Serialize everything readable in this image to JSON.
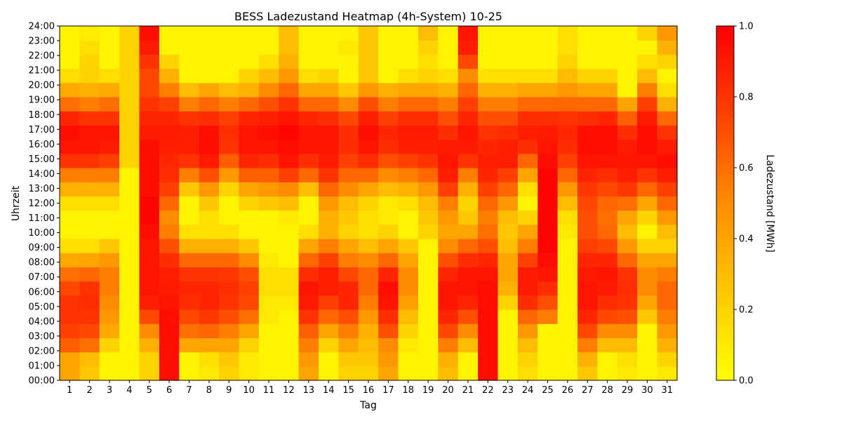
{
  "chart_data": {
    "type": "heatmap",
    "title": "BESS Ladezustand Heatmap (4h-System) 10-25",
    "xlabel": "Tag",
    "ylabel": "Uhrzeit",
    "colorbar_label": "Ladezustand [MWh]",
    "colorscale": [
      "#ffff00",
      "#ffc800",
      "#ff8c00",
      "#ff4000",
      "#ff0000"
    ],
    "vmin": 0.0,
    "vmax": 1.0,
    "colorbar_ticks": [
      "0.0",
      "0.2",
      "0.4",
      "0.6",
      "0.8",
      "1.0"
    ],
    "x_ticks": [
      "1",
      "2",
      "3",
      "4",
      "5",
      "6",
      "7",
      "8",
      "9",
      "10",
      "11",
      "12",
      "13",
      "14",
      "15",
      "16",
      "17",
      "18",
      "19",
      "20",
      "21",
      "22",
      "23",
      "24",
      "25",
      "26",
      "27",
      "28",
      "29",
      "30",
      "31"
    ],
    "y_ticks": [
      "00:00",
      "01:00",
      "02:00",
      "03:00",
      "04:00",
      "05:00",
      "06:00",
      "07:00",
      "08:00",
      "09:00",
      "10:00",
      "11:00",
      "12:00",
      "13:00",
      "14:00",
      "15:00",
      "16:00",
      "17:00",
      "18:00",
      "19:00",
      "20:00",
      "21:00",
      "22:00",
      "23:00",
      "24:00"
    ],
    "hours": [
      0,
      1,
      2,
      3,
      4,
      5,
      6,
      7,
      8,
      9,
      10,
      11,
      12,
      13,
      14,
      15,
      16,
      17,
      18,
      19,
      20,
      21,
      22,
      23,
      24
    ],
    "days": [
      {
        "day": 1,
        "values": [
          0.4,
          0.4,
          0.65,
          0.75,
          0.8,
          0.8,
          0.72,
          0.6,
          0.38,
          0.15,
          0.05,
          0.05,
          0.15,
          0.35,
          0.55,
          0.8,
          0.92,
          0.95,
          0.85,
          0.6,
          0.38,
          0.15,
          0.05,
          0.05,
          0.05
        ]
      },
      {
        "day": 2,
        "values": [
          0.25,
          0.3,
          0.6,
          0.72,
          0.8,
          0.82,
          0.8,
          0.62,
          0.4,
          0.15,
          0.05,
          0.05,
          0.15,
          0.35,
          0.55,
          0.8,
          0.92,
          0.92,
          0.8,
          0.55,
          0.35,
          0.2,
          0.2,
          0.15,
          0.08
        ]
      },
      {
        "day": 3,
        "values": [
          0.05,
          0.05,
          0.2,
          0.38,
          0.45,
          0.5,
          0.55,
          0.55,
          0.45,
          0.25,
          0.05,
          0.05,
          0.15,
          0.35,
          0.55,
          0.75,
          0.9,
          0.92,
          0.8,
          0.6,
          0.38,
          0.15,
          0.05,
          0.05,
          0.05
        ]
      },
      {
        "day": 4,
        "values": [
          0.05,
          0.05,
          0.05,
          0.05,
          0.05,
          0.05,
          0.05,
          0.05,
          0.05,
          0.05,
          0.05,
          0.05,
          0.05,
          0.05,
          0.05,
          0.2,
          0.2,
          0.2,
          0.2,
          0.2,
          0.2,
          0.2,
          0.2,
          0.2,
          0.2
        ]
      },
      {
        "day": 5,
        "values": [
          0.2,
          0.2,
          0.35,
          0.5,
          0.72,
          0.88,
          0.92,
          0.92,
          0.92,
          0.92,
          0.95,
          0.98,
          0.98,
          0.95,
          0.95,
          0.95,
          0.95,
          0.9,
          0.85,
          0.8,
          0.72,
          0.72,
          0.8,
          0.9,
          0.95
        ]
      },
      {
        "day": 6,
        "values": [
          0.95,
          0.95,
          0.95,
          0.95,
          0.95,
          0.92,
          0.9,
          0.88,
          0.82,
          0.7,
          0.55,
          0.5,
          0.62,
          0.75,
          0.82,
          0.85,
          0.88,
          0.9,
          0.85,
          0.75,
          0.55,
          0.35,
          0.2,
          0.05,
          0.05
        ]
      },
      {
        "day": 7,
        "values": [
          0.05,
          0.05,
          0.4,
          0.6,
          0.72,
          0.82,
          0.85,
          0.8,
          0.62,
          0.35,
          0.15,
          0.05,
          0.05,
          0.25,
          0.55,
          0.8,
          0.88,
          0.88,
          0.8,
          0.55,
          0.3,
          0.05,
          0.05,
          0.05,
          0.05
        ]
      },
      {
        "day": 8,
        "values": [
          0.1,
          0.15,
          0.4,
          0.62,
          0.78,
          0.85,
          0.85,
          0.8,
          0.62,
          0.35,
          0.15,
          0.15,
          0.25,
          0.45,
          0.7,
          0.9,
          0.95,
          0.95,
          0.82,
          0.62,
          0.4,
          0.05,
          0.05,
          0.05,
          0.05
        ]
      },
      {
        "day": 9,
        "values": [
          0.2,
          0.25,
          0.4,
          0.55,
          0.7,
          0.8,
          0.82,
          0.78,
          0.62,
          0.35,
          0.15,
          0.05,
          0.05,
          0.2,
          0.45,
          0.65,
          0.8,
          0.82,
          0.75,
          0.55,
          0.3,
          0.05,
          0.05,
          0.05,
          0.05
        ]
      },
      {
        "day": 10,
        "values": [
          0.1,
          0.1,
          0.2,
          0.4,
          0.6,
          0.72,
          0.75,
          0.7,
          0.5,
          0.25,
          0.05,
          0.05,
          0.2,
          0.4,
          0.65,
          0.85,
          0.92,
          0.92,
          0.85,
          0.62,
          0.35,
          0.2,
          0.05,
          0.05,
          0.05
        ]
      },
      {
        "day": 11,
        "values": [
          0.05,
          0.05,
          0.05,
          0.05,
          0.1,
          0.1,
          0.15,
          0.15,
          0.1,
          0.05,
          0.05,
          0.05,
          0.25,
          0.45,
          0.65,
          0.82,
          0.92,
          0.95,
          0.88,
          0.7,
          0.5,
          0.3,
          0.15,
          0.05,
          0.05
        ]
      },
      {
        "day": 12,
        "values": [
          0.05,
          0.05,
          0.05,
          0.05,
          0.05,
          0.1,
          0.15,
          0.15,
          0.05,
          0.05,
          0.05,
          0.1,
          0.3,
          0.5,
          0.75,
          0.92,
          0.95,
          0.98,
          0.92,
          0.8,
          0.62,
          0.45,
          0.35,
          0.3,
          0.3
        ]
      },
      {
        "day": 13,
        "values": [
          0.4,
          0.45,
          0.55,
          0.65,
          0.8,
          0.9,
          0.92,
          0.82,
          0.62,
          0.4,
          0.15,
          0.05,
          0.05,
          0.3,
          0.62,
          0.82,
          0.92,
          0.92,
          0.85,
          0.62,
          0.4,
          0.15,
          0.05,
          0.05,
          0.05
        ]
      },
      {
        "day": 14,
        "values": [
          0.05,
          0.05,
          0.2,
          0.4,
          0.62,
          0.75,
          0.88,
          0.88,
          0.75,
          0.55,
          0.35,
          0.35,
          0.45,
          0.62,
          0.8,
          0.9,
          0.92,
          0.92,
          0.82,
          0.62,
          0.4,
          0.2,
          0.05,
          0.05,
          0.05
        ]
      },
      {
        "day": 15,
        "values": [
          0.2,
          0.25,
          0.4,
          0.55,
          0.7,
          0.85,
          0.85,
          0.72,
          0.55,
          0.4,
          0.2,
          0.25,
          0.3,
          0.5,
          0.62,
          0.75,
          0.82,
          0.82,
          0.72,
          0.5,
          0.25,
          0.05,
          0.05,
          0.1,
          0.05
        ]
      },
      {
        "day": 16,
        "values": [
          0.2,
          0.25,
          0.3,
          0.35,
          0.45,
          0.55,
          0.62,
          0.62,
          0.5,
          0.3,
          0.15,
          0.15,
          0.2,
          0.4,
          0.62,
          0.82,
          0.92,
          0.95,
          0.88,
          0.7,
          0.45,
          0.25,
          0.25,
          0.25,
          0.25
        ]
      },
      {
        "day": 17,
        "values": [
          0.4,
          0.45,
          0.5,
          0.7,
          0.82,
          0.92,
          0.95,
          0.85,
          0.62,
          0.4,
          0.2,
          0.1,
          0.1,
          0.3,
          0.5,
          0.7,
          0.82,
          0.85,
          0.75,
          0.55,
          0.35,
          0.05,
          0.05,
          0.05,
          0.05
        ]
      },
      {
        "day": 18,
        "values": [
          0.05,
          0.05,
          0.1,
          0.2,
          0.3,
          0.42,
          0.5,
          0.5,
          0.4,
          0.25,
          0.05,
          0.05,
          0.15,
          0.35,
          0.55,
          0.75,
          0.88,
          0.9,
          0.82,
          0.62,
          0.4,
          0.15,
          0.05,
          0.05,
          0.05
        ]
      },
      {
        "day": 19,
        "values": [
          0.05,
          0.05,
          0.05,
          0.05,
          0.05,
          0.05,
          0.05,
          0.05,
          0.05,
          0.05,
          0.2,
          0.25,
          0.3,
          0.45,
          0.62,
          0.8,
          0.88,
          0.9,
          0.82,
          0.62,
          0.4,
          0.2,
          0.15,
          0.2,
          0.3
        ]
      },
      {
        "day": 20,
        "values": [
          0.3,
          0.35,
          0.55,
          0.72,
          0.85,
          0.92,
          0.92,
          0.85,
          0.7,
          0.5,
          0.4,
          0.45,
          0.55,
          0.75,
          0.88,
          0.92,
          0.9,
          0.82,
          0.7,
          0.55,
          0.35,
          0.15,
          0.05,
          0.05,
          0.05
        ]
      },
      {
        "day": 21,
        "values": [
          0.05,
          0.05,
          0.3,
          0.5,
          0.7,
          0.85,
          0.92,
          0.92,
          0.82,
          0.62,
          0.4,
          0.25,
          0.2,
          0.35,
          0.55,
          0.8,
          0.9,
          0.92,
          0.85,
          0.75,
          0.62,
          0.5,
          0.72,
          0.88,
          0.92
        ]
      },
      {
        "day": 22,
        "values": [
          0.95,
          0.95,
          0.95,
          0.95,
          0.95,
          0.95,
          0.95,
          0.92,
          0.85,
          0.7,
          0.6,
          0.55,
          0.62,
          0.75,
          0.85,
          0.88,
          0.85,
          0.8,
          0.7,
          0.55,
          0.35,
          0.15,
          0.05,
          0.05,
          0.05
        ]
      },
      {
        "day": 23,
        "values": [
          0.05,
          0.05,
          0.05,
          0.05,
          0.05,
          0.2,
          0.35,
          0.4,
          0.4,
          0.3,
          0.25,
          0.3,
          0.45,
          0.62,
          0.75,
          0.88,
          0.88,
          0.82,
          0.7,
          0.55,
          0.35,
          0.15,
          0.05,
          0.05,
          0.05
        ]
      },
      {
        "day": 24,
        "values": [
          0.15,
          0.2,
          0.3,
          0.45,
          0.62,
          0.82,
          0.9,
          0.9,
          0.75,
          0.55,
          0.4,
          0.2,
          0.05,
          0.15,
          0.4,
          0.62,
          0.82,
          0.88,
          0.82,
          0.62,
          0.4,
          0.15,
          0.05,
          0.05,
          0.05
        ]
      },
      {
        "day": 25,
        "values": [
          0.05,
          0.05,
          0.05,
          0.05,
          0.55,
          0.7,
          0.82,
          0.92,
          0.95,
          0.98,
          0.98,
          0.98,
          0.98,
          0.98,
          0.98,
          0.95,
          0.92,
          0.9,
          0.82,
          0.62,
          0.4,
          0.15,
          0.05,
          0.05,
          0.05
        ]
      },
      {
        "day": 26,
        "values": [
          0.05,
          0.05,
          0.05,
          0.05,
          0.05,
          0.05,
          0.05,
          0.05,
          0.05,
          0.05,
          0.1,
          0.15,
          0.3,
          0.45,
          0.62,
          0.75,
          0.82,
          0.85,
          0.8,
          0.62,
          0.45,
          0.3,
          0.2,
          0.15,
          0.15
        ]
      },
      {
        "day": 27,
        "values": [
          0.25,
          0.35,
          0.55,
          0.72,
          0.85,
          0.92,
          0.92,
          0.9,
          0.85,
          0.75,
          0.7,
          0.7,
          0.72,
          0.78,
          0.85,
          0.92,
          0.95,
          0.95,
          0.82,
          0.62,
          0.4,
          0.2,
          0.05,
          0.05,
          0.05
        ]
      },
      {
        "day": 28,
        "values": [
          0.05,
          0.05,
          0.3,
          0.5,
          0.72,
          0.82,
          0.9,
          0.92,
          0.85,
          0.72,
          0.62,
          0.6,
          0.62,
          0.72,
          0.82,
          0.92,
          0.95,
          0.95,
          0.85,
          0.62,
          0.4,
          0.2,
          0.05,
          0.05,
          0.05
        ]
      },
      {
        "day": 29,
        "values": [
          0.1,
          0.15,
          0.3,
          0.5,
          0.7,
          0.8,
          0.82,
          0.8,
          0.62,
          0.45,
          0.3,
          0.4,
          0.6,
          0.78,
          0.88,
          0.92,
          0.9,
          0.82,
          0.65,
          0.4,
          0.05,
          0.05,
          0.05,
          0.05,
          0.05
        ]
      },
      {
        "day": 30,
        "values": [
          0.05,
          0.05,
          0.05,
          0.05,
          0.25,
          0.4,
          0.5,
          0.5,
          0.4,
          0.2,
          0.05,
          0.2,
          0.4,
          0.62,
          0.8,
          0.92,
          0.95,
          0.95,
          0.9,
          0.75,
          0.55,
          0.3,
          0.15,
          0.05,
          0.2
        ]
      },
      {
        "day": 31,
        "values": [
          0.1,
          0.2,
          0.35,
          0.45,
          0.55,
          0.62,
          0.62,
          0.55,
          0.4,
          0.2,
          0.3,
          0.45,
          0.62,
          0.75,
          0.88,
          0.95,
          0.9,
          0.8,
          0.62,
          0.35,
          0.15,
          0.05,
          0.2,
          0.35,
          0.45
        ]
      }
    ]
  }
}
